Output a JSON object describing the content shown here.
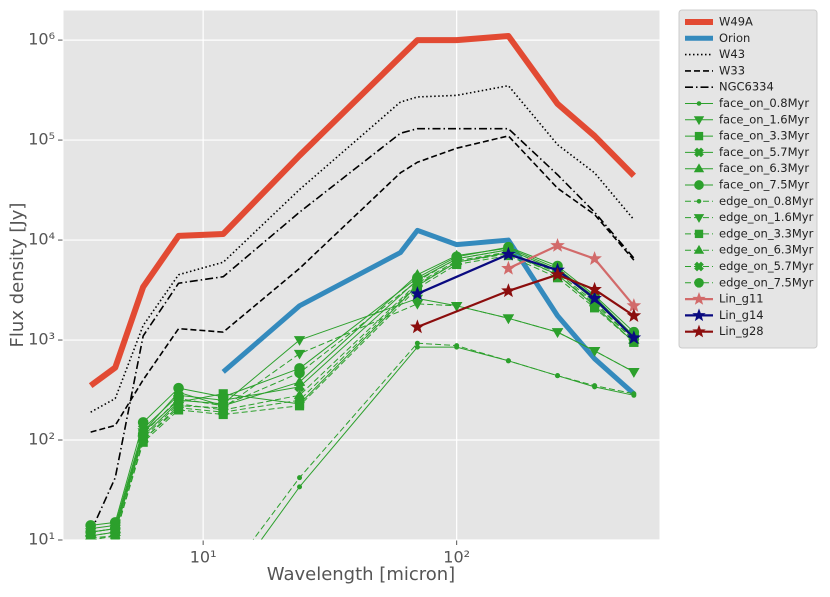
{
  "chart_data": {
    "type": "line",
    "log_x": true,
    "log_y": true,
    "grid": true,
    "legend": "outside right",
    "xlabel": "Wavelength [micron]",
    "ylabel": "Flux density [Jy]",
    "xlim": [
      2.8,
      634
    ],
    "ylim": [
      10,
      2000000
    ],
    "xticks": [
      {
        "value": 10,
        "label": "10¹"
      },
      {
        "value": 100,
        "label": "10²"
      }
    ],
    "yticks": [
      {
        "value": 10,
        "label": "10¹"
      },
      {
        "value": 100,
        "label": "10²"
      },
      {
        "value": 1000,
        "label": "10³"
      },
      {
        "value": 10000,
        "label": "10⁴"
      },
      {
        "value": 100000,
        "label": "10⁵"
      },
      {
        "value": 1000000,
        "label": "10⁶"
      }
    ],
    "series": [
      {
        "name": "W49A",
        "color": "#E24A33",
        "linestyle": "solid",
        "linewidth": 6,
        "marker": "none",
        "x": [
          3.6,
          4.5,
          5.8,
          8,
          12,
          24,
          70,
          100,
          160,
          250,
          350,
          500
        ],
        "values": [
          350,
          530,
          3400,
          11000,
          11500,
          70000,
          1000000,
          1000000,
          1100000,
          230000,
          110000,
          44000
        ]
      },
      {
        "name": "Orion",
        "color": "#348ABD",
        "linestyle": "solid",
        "linewidth": 5,
        "marker": "none",
        "x": [
          12,
          24,
          60,
          70,
          100,
          160,
          250,
          350,
          500
        ],
        "values": [
          480,
          2200,
          7500,
          12500,
          9000,
          10000,
          1750,
          650,
          290
        ]
      },
      {
        "name": "W43",
        "color": "#000000",
        "linestyle": "dotted",
        "linewidth": 1.6,
        "marker": "none",
        "x": [
          3.6,
          4.5,
          5.8,
          8,
          12,
          24,
          60,
          70,
          100,
          160,
          250,
          350,
          500
        ],
        "values": [
          190,
          260,
          1400,
          4500,
          6000,
          32000,
          240000,
          270000,
          280000,
          350000,
          90000,
          47000,
          16000
        ]
      },
      {
        "name": "W33",
        "color": "#000000",
        "linestyle": "dashed",
        "linewidth": 1.6,
        "marker": "none",
        "x": [
          3.6,
          4.5,
          5.8,
          8,
          12,
          24,
          60,
          70,
          100,
          160,
          250,
          350,
          500
        ],
        "values": [
          120,
          140,
          400,
          1300,
          1200,
          5200,
          47000,
          60000,
          83000,
          110000,
          33000,
          18000,
          6300
        ]
      },
      {
        "name": "NGC6334",
        "color": "#000000",
        "linestyle": "dashdot",
        "linewidth": 1.6,
        "marker": "none",
        "x": [
          3.6,
          4.5,
          5.8,
          8,
          12,
          24,
          60,
          70,
          100,
          160,
          250,
          350,
          500
        ],
        "values": [
          12,
          42,
          1100,
          3700,
          4300,
          19000,
          117000,
          130000,
          130000,
          130000,
          45000,
          19000,
          6600
        ]
      },
      {
        "name": "face_on_0.8Myr",
        "color": "#2ca02c",
        "linestyle": "solid",
        "linewidth": 1,
        "marker": ".",
        "x": [
          12,
          24,
          70,
          100,
          160,
          250,
          350,
          500
        ],
        "values": [
          3,
          34,
          850,
          850,
          620,
          440,
          340,
          280
        ]
      },
      {
        "name": "face_on_1.6Myr",
        "color": "#2ca02c",
        "linestyle": "solid",
        "linewidth": 1,
        "marker": "v",
        "x": [
          3.6,
          4.5,
          5.8,
          8,
          12,
          24,
          70,
          100,
          160,
          250,
          350,
          500
        ],
        "values": [
          12,
          13,
          120,
          250,
          230,
          1000,
          2600,
          2200,
          1650,
          1200,
          780,
          480
        ]
      },
      {
        "name": "face_on_3.3Myr",
        "color": "#2ca02c",
        "linestyle": "solid",
        "linewidth": 1,
        "marker": "s",
        "x": [
          3.6,
          4.5,
          5.8,
          8,
          12,
          24,
          70,
          100,
          160,
          250,
          350,
          500
        ],
        "values": [
          11,
          12,
          110,
          240,
          290,
          230,
          3500,
          6000,
          7500,
          4500,
          2200,
          950
        ]
      },
      {
        "name": "face_on_5.7Myr",
        "color": "#2ca02c",
        "linestyle": "solid",
        "linewidth": 1,
        "marker": "X",
        "x": [
          3.6,
          4.5,
          5.8,
          8,
          12,
          24,
          70,
          100,
          160,
          250,
          350,
          500
        ],
        "values": [
          13,
          14,
          130,
          280,
          250,
          340,
          4000,
          6500,
          8000,
          5000,
          2500,
          1050
        ]
      },
      {
        "name": "face_on_6.3Myr",
        "color": "#2ca02c",
        "linestyle": "solid",
        "linewidth": 1,
        "marker": "^",
        "x": [
          3.6,
          4.5,
          5.8,
          8,
          12,
          24,
          70,
          100,
          160,
          250,
          350,
          500
        ],
        "values": [
          12,
          13,
          120,
          300,
          220,
          380,
          4500,
          7000,
          8300,
          5200,
          2700,
          1100
        ]
      },
      {
        "name": "face_on_7.5Myr",
        "color": "#2ca02c",
        "linestyle": "solid",
        "linewidth": 1,
        "marker": "o",
        "x": [
          3.6,
          4.5,
          5.8,
          8,
          12,
          24,
          70,
          100,
          160,
          250,
          350,
          500
        ],
        "values": [
          14,
          15,
          150,
          330,
          270,
          520,
          4200,
          6800,
          8500,
          5500,
          2800,
          1200
        ]
      },
      {
        "name": "edge_on_0.8Myr",
        "color": "#2ca02c",
        "linestyle": "dashed",
        "linewidth": 1,
        "marker": ".",
        "x": [
          12,
          24,
          70,
          100,
          160,
          250,
          350,
          500
        ],
        "values": [
          4,
          42,
          930,
          880,
          620,
          440,
          350,
          290
        ]
      },
      {
        "name": "edge_on_1.6Myr",
        "color": "#2ca02c",
        "linestyle": "dashed",
        "linewidth": 1,
        "marker": "v",
        "x": [
          3.6,
          4.5,
          5.8,
          8,
          12,
          24,
          70,
          100,
          160,
          250,
          350,
          500
        ],
        "values": [
          10,
          11,
          100,
          220,
          210,
          730,
          2300,
          2200,
          1650,
          1200,
          780,
          480
        ]
      },
      {
        "name": "edge_on_3.3Myr",
        "color": "#2ca02c",
        "linestyle": "dashed",
        "linewidth": 1,
        "marker": "s",
        "x": [
          3.6,
          4.5,
          5.8,
          8,
          12,
          24,
          70,
          100,
          160,
          250,
          350,
          500
        ],
        "values": [
          10,
          11,
          95,
          200,
          180,
          220,
          3300,
          5700,
          7000,
          4200,
          2100,
          950
        ]
      },
      {
        "name": "edge_on_6.3Myr",
        "color": "#2ca02c",
        "linestyle": "dashed",
        "linewidth": 1,
        "marker": "^",
        "x": [
          3.6,
          4.5,
          5.8,
          8,
          12,
          24,
          70,
          100,
          160,
          250,
          350,
          500
        ],
        "values": [
          11,
          12,
          105,
          230,
          200,
          280,
          3700,
          6200,
          7600,
          4700,
          2400,
          1000
        ]
      },
      {
        "name": "edge_on_5.7Myr",
        "color": "#2ca02c",
        "linestyle": "dashed",
        "linewidth": 1,
        "marker": "X",
        "x": [
          3.6,
          4.5,
          5.8,
          8,
          12,
          24,
          70,
          100,
          160,
          250,
          350,
          500
        ],
        "values": [
          10.5,
          11,
          100,
          210,
          190,
          250,
          3600,
          6000,
          7300,
          4500,
          2300,
          1000
        ]
      },
      {
        "name": "edge_on_7.5Myr",
        "color": "#2ca02c",
        "linestyle": "dashed",
        "linewidth": 1,
        "marker": "o",
        "x": [
          3.6,
          4.5,
          5.8,
          8,
          12,
          24,
          70,
          100,
          160,
          250,
          350,
          500
        ],
        "values": [
          12,
          13,
          115,
          260,
          220,
          470,
          3900,
          6500,
          8000,
          5000,
          2600,
          1100
        ]
      },
      {
        "name": "Lin_g11",
        "color": "#d26a6a",
        "linestyle": "solid",
        "linewidth": 2.2,
        "marker": "*",
        "x": [
          160,
          250,
          350,
          500
        ],
        "values": [
          5200,
          8800,
          6500,
          2200
        ]
      },
      {
        "name": "Lin_g14",
        "color": "#0a0a80",
        "linestyle": "solid",
        "linewidth": 2.2,
        "marker": "*",
        "x": [
          70,
          160,
          250,
          350,
          500
        ],
        "values": [
          2900,
          7200,
          5000,
          2600,
          1050
        ]
      },
      {
        "name": "Lin_g28",
        "color": "#8b0d0d",
        "linestyle": "solid",
        "linewidth": 2.2,
        "marker": "*",
        "x": [
          70,
          160,
          250,
          350,
          500
        ],
        "values": [
          1350,
          3100,
          4500,
          3200,
          1750
        ]
      }
    ]
  }
}
